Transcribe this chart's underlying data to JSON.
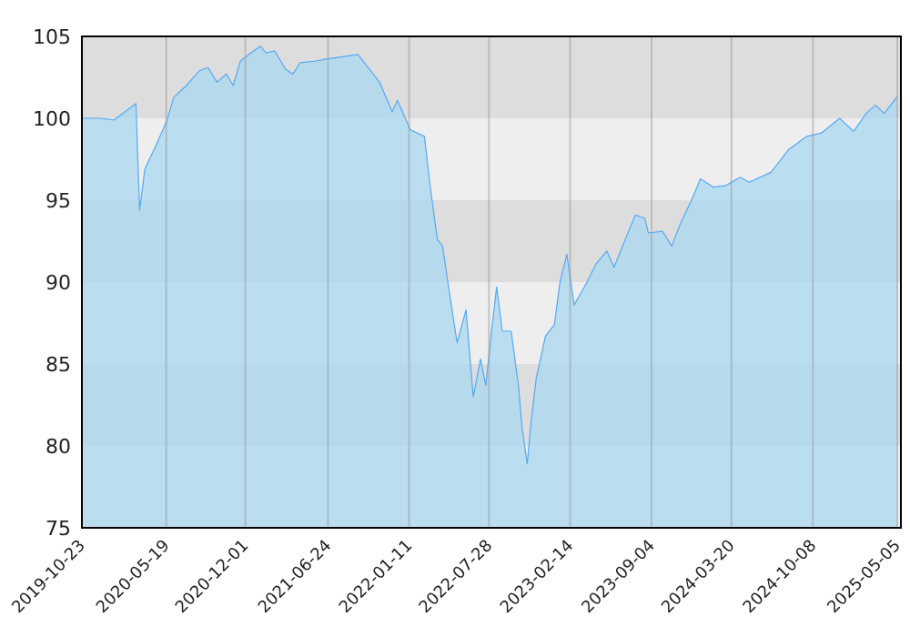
{
  "chart_data": {
    "type": "area",
    "x": [
      "2019-10-23",
      "2019-12-07",
      "2020-01-11",
      "2020-03-05",
      "2020-03-14",
      "2020-03-27",
      "2020-04-19",
      "2020-05-20",
      "2020-06-07",
      "2020-07-08",
      "2020-08-09",
      "2020-08-31",
      "2020-09-22",
      "2020-10-15",
      "2020-11-01",
      "2020-11-19",
      "2020-12-21",
      "2021-01-08",
      "2021-01-21",
      "2021-02-12",
      "2021-03-11",
      "2021-03-29",
      "2021-04-16",
      "2021-05-26",
      "2021-06-17",
      "2021-09-06",
      "2021-10-30",
      "2021-11-30",
      "2021-12-13",
      "2022-01-14",
      "2022-02-18",
      "2022-03-04",
      "2022-03-22",
      "2022-04-04",
      "2022-04-17",
      "2022-05-10",
      "2022-06-01",
      "2022-06-19",
      "2022-07-07",
      "2022-07-20",
      "2022-08-03",
      "2022-08-16",
      "2022-08-30",
      "2022-09-21",
      "2022-10-09",
      "2022-10-18",
      "2022-10-31",
      "2022-11-09",
      "2022-11-22",
      "2022-12-15",
      "2023-01-06",
      "2023-01-20",
      "2023-02-06",
      "2023-02-24",
      "2023-03-28",
      "2023-04-19",
      "2023-05-16",
      "2023-06-03",
      "2023-07-04",
      "2023-07-26",
      "2023-08-18",
      "2023-08-27",
      "2023-10-01",
      "2023-10-24",
      "2023-11-15",
      "2023-12-12",
      "2024-01-03",
      "2024-02-04",
      "2024-03-06",
      "2024-04-11",
      "2024-05-03",
      "2024-06-26",
      "2024-08-09",
      "2024-09-23",
      "2024-10-29",
      "2024-12-13",
      "2025-01-17",
      "2025-02-17",
      "2025-03-12",
      "2025-04-03",
      "2025-05-04"
    ],
    "series": [
      {
        "color": "#55a8f5",
        "values": [
          100.0,
          100.0,
          99.9,
          100.9,
          94.4,
          96.9,
          98.1,
          99.8,
          101.3,
          102.0,
          102.9,
          103.1,
          102.2,
          102.7,
          102.0,
          103.5,
          104.1,
          104.4,
          104.0,
          104.1,
          103.0,
          102.7,
          103.4,
          103.5,
          103.6,
          103.9,
          102.2,
          100.4,
          101.1,
          99.3,
          98.9,
          95.9,
          92.6,
          92.2,
          90.0,
          86.3,
          88.3,
          83.0,
          85.3,
          83.7,
          86.9,
          89.7,
          87.0,
          87.0,
          83.7,
          81.1,
          78.9,
          81.4,
          84.1,
          86.7,
          87.4,
          90.0,
          91.7,
          88.6,
          90.0,
          91.1,
          91.9,
          90.9,
          92.8,
          94.1,
          93.9,
          93.0,
          93.1,
          92.2,
          93.6,
          95.0,
          96.3,
          95.8,
          95.9,
          96.4,
          96.1,
          96.7,
          98.1,
          98.9,
          99.1,
          100.0,
          99.2,
          100.3,
          100.8,
          100.3,
          101.3
        ]
      }
    ],
    "xlim": [
      "2019-10-23",
      "2025-05-14"
    ],
    "xticks": [
      "2019-10-23",
      "2020-05-19",
      "2020-12-01",
      "2021-06-24",
      "2022-01-11",
      "2022-07-28",
      "2023-02-14",
      "2023-09-04",
      "2024-03-20",
      "2024-10-08",
      "2025-05-05"
    ],
    "ylim": [
      75,
      105
    ],
    "yticks": [
      75,
      80,
      85,
      90,
      95,
      100,
      105
    ],
    "grid": true
  }
}
